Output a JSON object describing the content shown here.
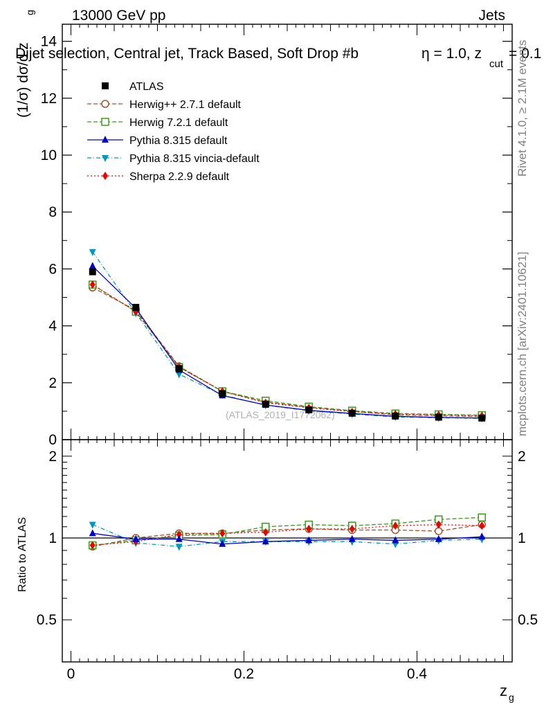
{
  "header": {
    "left": "13000 GeV pp",
    "right": "Jets",
    "title": "Dijet selection, Central jet, Track Based, Soft Drop #b",
    "title_eta": "η = 1.0, z",
    "title_sub": "cut",
    "title_end": " = 0.1"
  },
  "side_labels": {
    "rivet": "Rivet 4.1.0, ≥ 2.1M events",
    "mcplots": "mcplots.cern.ch [arXiv:2401.10621]"
  },
  "watermark": "(ATLAS_2019_I1772062)",
  "axes": {
    "main_ylabel": "(1/σ) dσ/d z",
    "main_ylabel_sub": "g",
    "ratio_ylabel": "Ratio to ATLAS",
    "xlabel": "z",
    "xlabel_sub": "g"
  },
  "chart_data": {
    "type": "line",
    "x": [
      0.025,
      0.075,
      0.125,
      0.175,
      0.225,
      0.275,
      0.325,
      0.375,
      0.425,
      0.475
    ],
    "xlim": [
      -0.01,
      0.51
    ],
    "ylim": [
      0,
      14.6
    ],
    "yticks": [
      0,
      2,
      4,
      6,
      8,
      10,
      12,
      14
    ],
    "xticks": [
      0,
      0.2,
      0.4
    ],
    "ratio_ylim": [
      0.35,
      2.3
    ],
    "ratio_yticks": [
      0.5,
      1,
      2
    ],
    "series": [
      {
        "name": "ATLAS",
        "color": "#000000",
        "marker": "square-filled",
        "dash": "none",
        "values": [
          5.9,
          4.65,
          2.5,
          1.62,
          1.25,
          1.05,
          0.93,
          0.83,
          0.79,
          0.76
        ],
        "ratio": [
          1.0,
          1.0,
          1.0,
          1.0,
          1.0,
          1.0,
          1.0,
          1.0,
          1.0,
          1.0
        ]
      },
      {
        "name": "Herwig++ 2.7.1 default",
        "color": "#a0522d",
        "marker": "circle-open",
        "dash": "6,3",
        "values": [
          5.35,
          4.55,
          2.58,
          1.7,
          1.32,
          1.14,
          1.0,
          0.87,
          0.84,
          0.81
        ],
        "ratio": [
          0.93,
          1.0,
          1.04,
          1.04,
          1.07,
          1.08,
          1.07,
          1.07,
          1.06,
          1.12
        ]
      },
      {
        "name": "Herwig 7.2.1 default",
        "color": "#3a9a1a",
        "marker": "square-open",
        "dash": "6,3",
        "values": [
          5.45,
          4.5,
          2.55,
          1.7,
          1.37,
          1.16,
          1.02,
          0.92,
          0.89,
          0.86
        ],
        "ratio": [
          0.94,
          0.98,
          1.02,
          1.03,
          1.1,
          1.12,
          1.11,
          1.13,
          1.17,
          1.19
        ]
      },
      {
        "name": "Pythia 8.315 default",
        "color": "#0000cc",
        "marker": "triangle-up",
        "dash": "none",
        "values": [
          6.1,
          4.62,
          2.45,
          1.55,
          1.22,
          1.03,
          0.92,
          0.82,
          0.78,
          0.76
        ],
        "ratio": [
          1.04,
          0.99,
          0.99,
          0.95,
          0.97,
          0.98,
          0.99,
          0.98,
          0.99,
          1.01
        ]
      },
      {
        "name": "Pythia 8.315 vincia-default",
        "color": "#0097c0",
        "marker": "triangle-down",
        "dash": "6,3,1,3",
        "values": [
          6.6,
          4.45,
          2.3,
          1.57,
          1.21,
          1.02,
          0.9,
          0.8,
          0.77,
          0.75
        ],
        "ratio": [
          1.12,
          0.96,
          0.93,
          0.97,
          0.97,
          0.97,
          0.97,
          0.95,
          0.98,
          0.99
        ]
      },
      {
        "name": "Sherpa 2.2.9 default",
        "color": "#ee0000",
        "marker": "diamond",
        "dash": "2,3",
        "values": [
          5.45,
          4.5,
          2.55,
          1.7,
          1.3,
          1.12,
          0.98,
          0.9,
          0.87,
          0.84
        ],
        "ratio": [
          0.94,
          0.97,
          1.03,
          1.04,
          1.05,
          1.08,
          1.08,
          1.11,
          1.12,
          1.11
        ]
      }
    ]
  }
}
